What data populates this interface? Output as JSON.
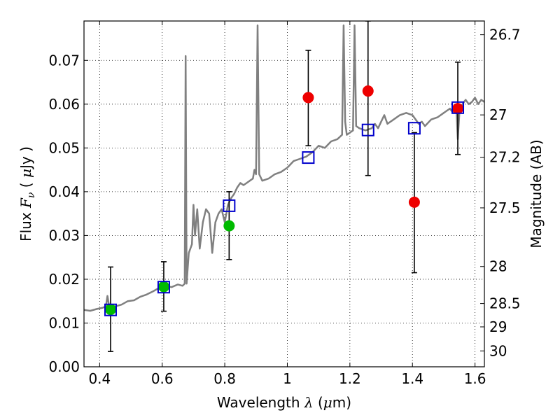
{
  "chart_data": {
    "type": "scatter",
    "title": "",
    "xlabel": {
      "prefix": "Wavelength ",
      "lambda": "λ",
      "unit_open": " (",
      "mu": "μ",
      "unit_rest": "m)"
    },
    "ylabel": {
      "prefix": "Flux ",
      "F": "F",
      "nu": "ν",
      "open": " ( ",
      "mu": "μ",
      "unit_rest": "Jy )"
    },
    "y2label": "Magnitude (AB)",
    "xlim": [
      0.35,
      1.63
    ],
    "ylim": [
      0.0,
      0.079
    ],
    "x_ticks": [
      {
        "v": 0.4,
        "t": "0.4"
      },
      {
        "v": 0.6,
        "t": "0.6"
      },
      {
        "v": 0.8,
        "t": "0.8"
      },
      {
        "v": 1.0,
        "t": "1"
      },
      {
        "v": 1.2,
        "t": "1.2"
      },
      {
        "v": 1.4,
        "t": "1.4"
      },
      {
        "v": 1.6,
        "t": "1.6"
      }
    ],
    "y_ticks": [
      {
        "v": 0.0,
        "t": "0.00"
      },
      {
        "v": 0.01,
        "t": "0.01"
      },
      {
        "v": 0.02,
        "t": "0.02"
      },
      {
        "v": 0.03,
        "t": "0.03"
      },
      {
        "v": 0.04,
        "t": "0.04"
      },
      {
        "v": 0.05,
        "t": "0.05"
      },
      {
        "v": 0.06,
        "t": "0.06"
      },
      {
        "v": 0.07,
        "t": "0.07"
      }
    ],
    "y2_ticks": [
      {
        "mag": 26.7,
        "t": "26.7"
      },
      {
        "mag": 27.0,
        "t": "27"
      },
      {
        "mag": 27.2,
        "t": "27.2"
      },
      {
        "mag": 27.5,
        "t": "27.5"
      },
      {
        "mag": 28.0,
        "t": "28"
      },
      {
        "mag": 28.5,
        "t": "28.5"
      },
      {
        "mag": 29.0,
        "t": "29"
      },
      {
        "mag": 30.0,
        "t": "30"
      }
    ],
    "grid": true,
    "colors": {
      "spectrum": "#808080",
      "model": "#0000cc",
      "detection": "#00bb00",
      "upper": "#ee0000",
      "errorbar": "#000000"
    },
    "spectrum": [
      [
        0.35,
        0.013
      ],
      [
        0.37,
        0.0128
      ],
      [
        0.39,
        0.0132
      ],
      [
        0.41,
        0.0135
      ],
      [
        0.42,
        0.0138
      ],
      [
        0.425,
        0.0162
      ],
      [
        0.43,
        0.014
      ],
      [
        0.45,
        0.0138
      ],
      [
        0.47,
        0.0142
      ],
      [
        0.49,
        0.015
      ],
      [
        0.51,
        0.0152
      ],
      [
        0.53,
        0.016
      ],
      [
        0.55,
        0.0165
      ],
      [
        0.57,
        0.0172
      ],
      [
        0.59,
        0.018
      ],
      [
        0.61,
        0.0185
      ],
      [
        0.63,
        0.0182
      ],
      [
        0.65,
        0.0188
      ],
      [
        0.665,
        0.0185
      ],
      [
        0.672,
        0.019
      ],
      [
        0.675,
        0.071
      ],
      [
        0.678,
        0.019
      ],
      [
        0.685,
        0.026
      ],
      [
        0.695,
        0.028
      ],
      [
        0.7,
        0.037
      ],
      [
        0.705,
        0.03
      ],
      [
        0.712,
        0.036
      ],
      [
        0.72,
        0.027
      ],
      [
        0.73,
        0.033
      ],
      [
        0.74,
        0.036
      ],
      [
        0.75,
        0.035
      ],
      [
        0.76,
        0.026
      ],
      [
        0.77,
        0.033
      ],
      [
        0.78,
        0.035
      ],
      [
        0.79,
        0.036
      ],
      [
        0.8,
        0.033
      ],
      [
        0.81,
        0.037
      ],
      [
        0.82,
        0.0385
      ],
      [
        0.83,
        0.0395
      ],
      [
        0.84,
        0.041
      ],
      [
        0.85,
        0.042
      ],
      [
        0.86,
        0.0415
      ],
      [
        0.87,
        0.042
      ],
      [
        0.88,
        0.0425
      ],
      [
        0.89,
        0.043
      ],
      [
        0.895,
        0.045
      ],
      [
        0.9,
        0.044
      ],
      [
        0.905,
        0.078
      ],
      [
        0.91,
        0.044
      ],
      [
        0.92,
        0.0425
      ],
      [
        0.94,
        0.043
      ],
      [
        0.96,
        0.044
      ],
      [
        0.98,
        0.0445
      ],
      [
        1.0,
        0.0455
      ],
      [
        1.02,
        0.047
      ],
      [
        1.04,
        0.0475
      ],
      [
        1.06,
        0.048
      ],
      [
        1.08,
        0.049
      ],
      [
        1.1,
        0.0505
      ],
      [
        1.12,
        0.05
      ],
      [
        1.14,
        0.0515
      ],
      [
        1.16,
        0.052
      ],
      [
        1.175,
        0.053
      ],
      [
        1.18,
        0.078
      ],
      [
        1.185,
        0.056
      ],
      [
        1.19,
        0.053
      ],
      [
        1.2,
        0.0535
      ],
      [
        1.21,
        0.054
      ],
      [
        1.215,
        0.078
      ],
      [
        1.22,
        0.055
      ],
      [
        1.23,
        0.0545
      ],
      [
        1.25,
        0.054
      ],
      [
        1.27,
        0.0545
      ],
      [
        1.28,
        0.0555
      ],
      [
        1.29,
        0.0545
      ],
      [
        1.3,
        0.056
      ],
      [
        1.31,
        0.0575
      ],
      [
        1.32,
        0.0555
      ],
      [
        1.34,
        0.0565
      ],
      [
        1.36,
        0.0575
      ],
      [
        1.38,
        0.058
      ],
      [
        1.4,
        0.0575
      ],
      [
        1.42,
        0.0555
      ],
      [
        1.43,
        0.056
      ],
      [
        1.44,
        0.055
      ],
      [
        1.46,
        0.0565
      ],
      [
        1.48,
        0.057
      ],
      [
        1.5,
        0.058
      ],
      [
        1.52,
        0.059
      ],
      [
        1.53,
        0.058
      ],
      [
        1.54,
        0.0595
      ],
      [
        1.545,
        0.052
      ],
      [
        1.55,
        0.058
      ],
      [
        1.56,
        0.06
      ],
      [
        1.57,
        0.061
      ],
      [
        1.58,
        0.06
      ],
      [
        1.59,
        0.0605
      ],
      [
        1.6,
        0.0615
      ],
      [
        1.61,
        0.06
      ],
      [
        1.62,
        0.061
      ],
      [
        1.63,
        0.0605
      ]
    ],
    "model_points": [
      {
        "x": 0.435,
        "y": 0.013
      },
      {
        "x": 0.605,
        "y": 0.0182
      },
      {
        "x": 0.814,
        "y": 0.0368
      },
      {
        "x": 1.067,
        "y": 0.0478
      },
      {
        "x": 1.258,
        "y": 0.0541
      },
      {
        "x": 1.406,
        "y": 0.0545
      },
      {
        "x": 1.545,
        "y": 0.0592
      }
    ],
    "detections": [
      {
        "x": 0.435,
        "y": 0.0131,
        "ylo": 0.0035,
        "yhi": 0.0228
      },
      {
        "x": 0.605,
        "y": 0.0183,
        "ylo": 0.0127,
        "yhi": 0.024
      },
      {
        "x": 0.814,
        "y": 0.0322,
        "ylo": 0.0245,
        "yhi": 0.04
      }
    ],
    "upper_limits": [
      {
        "x": 1.067,
        "y": 0.0615,
        "ylo": 0.0505,
        "yhi": 0.0723
      },
      {
        "x": 1.258,
        "y": 0.063,
        "ylo": 0.0437,
        "yhi": 0.079
      },
      {
        "x": 1.406,
        "y": 0.0376,
        "ylo": 0.0215,
        "yhi": 0.0535
      },
      {
        "x": 1.545,
        "y": 0.059,
        "ylo": 0.0485,
        "yhi": 0.0696
      }
    ]
  }
}
